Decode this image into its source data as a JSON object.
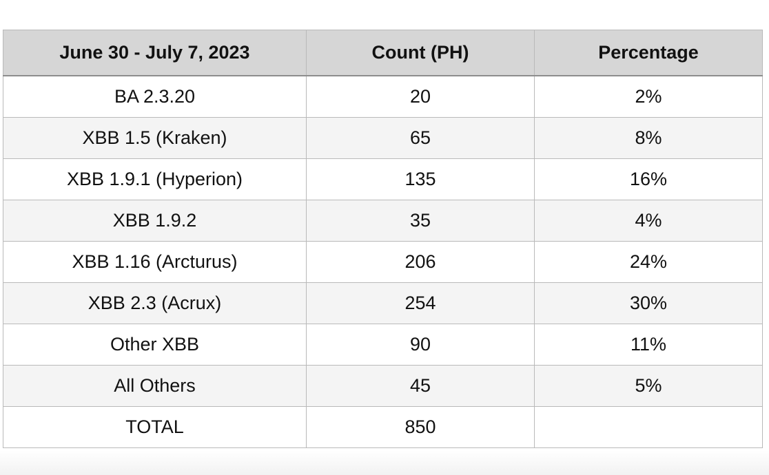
{
  "table": {
    "headers": [
      "June 30 - July 7, 2023",
      "Count (PH)",
      "Percentage"
    ],
    "rows": [
      [
        "BA 2.3.20",
        "20",
        "2%"
      ],
      [
        "XBB 1.5 (Kraken)",
        "65",
        "8%"
      ],
      [
        "XBB 1.9.1 (Hyperion)",
        "135",
        "16%"
      ],
      [
        "XBB 1.9.2",
        "35",
        "4%"
      ],
      [
        "XBB 1.16 (Arcturus)",
        "206",
        "24%"
      ],
      [
        "XBB 2.3 (Acrux)",
        "254",
        "30%"
      ],
      [
        "Other XBB",
        "90",
        "11%"
      ],
      [
        "All Others",
        "45",
        "5%"
      ],
      [
        "TOTAL",
        "850",
        ""
      ]
    ]
  },
  "colors": {
    "header_background": "#d6d6d6",
    "alternate_row_background": "#f4f4f4",
    "border": "#b9b9b9",
    "text": "#111111"
  }
}
